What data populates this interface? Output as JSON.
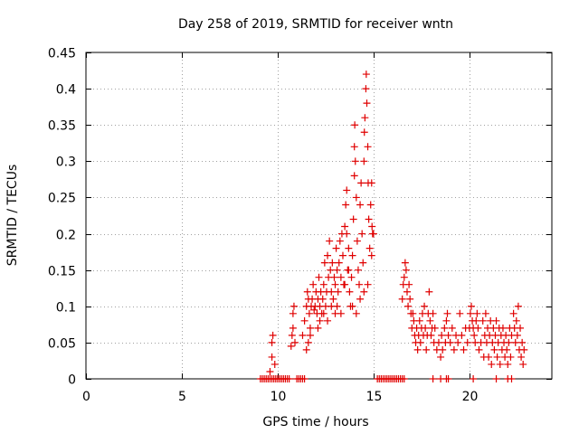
{
  "chart_data": {
    "type": "scatter",
    "title": "Day 258 of 2019, SRMTID for receiver wntn",
    "xlabel": "GPS time / hours",
    "ylabel": "SRMTID / TECUs",
    "xlim": [
      0,
      24.3
    ],
    "ylim": [
      0,
      0.45
    ],
    "xticks": [
      0,
      5,
      10,
      15,
      20
    ],
    "yticks": [
      0,
      0.05,
      0.1,
      0.15,
      0.2,
      0.25,
      0.3,
      0.35,
      0.4,
      0.45
    ],
    "xtick_labels": [
      "0",
      "5",
      "10",
      "15",
      "20"
    ],
    "ytick_labels": [
      "0",
      "0.05",
      "0.1",
      "0.15",
      "0.2",
      "0.25",
      "0.3",
      "0.35",
      "0.4",
      "0.45"
    ],
    "grid": true,
    "marker": "+",
    "color": "#e00000",
    "series": [
      {
        "name": "SRMTID",
        "points": [
          [
            9.1,
            0.0
          ],
          [
            9.2,
            0.0
          ],
          [
            9.3,
            0.0
          ],
          [
            9.4,
            0.0
          ],
          [
            9.5,
            0.0
          ],
          [
            9.6,
            0.0
          ],
          [
            9.7,
            0.0
          ],
          [
            9.8,
            0.0
          ],
          [
            9.9,
            0.0
          ],
          [
            10.0,
            0.0
          ],
          [
            10.1,
            0.0
          ],
          [
            10.2,
            0.0
          ],
          [
            10.3,
            0.0
          ],
          [
            10.4,
            0.0
          ],
          [
            10.5,
            0.0
          ],
          [
            10.6,
            0.0
          ],
          [
            11.0,
            0.0
          ],
          [
            11.1,
            0.0
          ],
          [
            11.2,
            0.0
          ],
          [
            11.3,
            0.0
          ],
          [
            11.4,
            0.0
          ],
          [
            15.2,
            0.0
          ],
          [
            15.3,
            0.0
          ],
          [
            15.4,
            0.0
          ],
          [
            15.5,
            0.0
          ],
          [
            15.6,
            0.0
          ],
          [
            15.7,
            0.0
          ],
          [
            15.8,
            0.0
          ],
          [
            15.9,
            0.0
          ],
          [
            16.0,
            0.0
          ],
          [
            16.1,
            0.0
          ],
          [
            16.2,
            0.0
          ],
          [
            16.3,
            0.0
          ],
          [
            16.4,
            0.0
          ],
          [
            16.5,
            0.0
          ],
          [
            16.6,
            0.0
          ],
          [
            18.1,
            0.0
          ],
          [
            18.5,
            0.0
          ],
          [
            18.8,
            0.0
          ],
          [
            18.9,
            0.0
          ],
          [
            20.2,
            0.0
          ],
          [
            21.4,
            0.0
          ],
          [
            22.0,
            0.0
          ],
          [
            22.2,
            0.0
          ],
          [
            9.6,
            0.01
          ],
          [
            9.7,
            0.03
          ],
          [
            9.7,
            0.05
          ],
          [
            9.75,
            0.06
          ],
          [
            9.85,
            0.02
          ],
          [
            10.7,
            0.045
          ],
          [
            10.75,
            0.06
          ],
          [
            10.8,
            0.09
          ],
          [
            10.85,
            0.1
          ],
          [
            10.8,
            0.07
          ],
          [
            10.9,
            0.05
          ],
          [
            11.3,
            0.06
          ],
          [
            11.4,
            0.08
          ],
          [
            11.5,
            0.1
          ],
          [
            11.55,
            0.12
          ],
          [
            11.6,
            0.11
          ],
          [
            11.65,
            0.09
          ],
          [
            11.7,
            0.07
          ],
          [
            11.75,
            0.1
          ],
          [
            11.8,
            0.11
          ],
          [
            11.85,
            0.13
          ],
          [
            11.9,
            0.095
          ],
          [
            11.95,
            0.1
          ],
          [
            12.0,
            0.12
          ],
          [
            12.05,
            0.09
          ],
          [
            12.1,
            0.11
          ],
          [
            12.15,
            0.14
          ],
          [
            12.2,
            0.1
          ],
          [
            12.25,
            0.12
          ],
          [
            12.3,
            0.09
          ],
          [
            12.35,
            0.11
          ],
          [
            12.4,
            0.13
          ],
          [
            12.45,
            0.16
          ],
          [
            12.5,
            0.1
          ],
          [
            12.55,
            0.12
          ],
          [
            12.6,
            0.17
          ],
          [
            12.65,
            0.14
          ],
          [
            12.7,
            0.19
          ],
          [
            12.75,
            0.15
          ],
          [
            12.8,
            0.12
          ],
          [
            12.85,
            0.16
          ],
          [
            12.9,
            0.11
          ],
          [
            12.95,
            0.14
          ],
          [
            13.0,
            0.13
          ],
          [
            13.05,
            0.18
          ],
          [
            13.1,
            0.15
          ],
          [
            13.15,
            0.12
          ],
          [
            13.2,
            0.16
          ],
          [
            13.25,
            0.19
          ],
          [
            13.3,
            0.14
          ],
          [
            13.35,
            0.2
          ],
          [
            13.4,
            0.17
          ],
          [
            13.45,
            0.13
          ],
          [
            13.5,
            0.21
          ],
          [
            13.55,
            0.24
          ],
          [
            13.6,
            0.26
          ],
          [
            13.6,
            0.2
          ],
          [
            13.65,
            0.15
          ],
          [
            13.7,
            0.18
          ],
          [
            13.75,
            0.12
          ],
          [
            13.8,
            0.1
          ],
          [
            13.85,
            0.14
          ],
          [
            13.9,
            0.17
          ],
          [
            13.95,
            0.22
          ],
          [
            14.0,
            0.28
          ],
          [
            14.0,
            0.32
          ],
          [
            14.02,
            0.35
          ],
          [
            14.05,
            0.3
          ],
          [
            14.1,
            0.25
          ],
          [
            14.15,
            0.19
          ],
          [
            14.2,
            0.15
          ],
          [
            14.25,
            0.13
          ],
          [
            14.3,
            0.24
          ],
          [
            14.35,
            0.27
          ],
          [
            14.4,
            0.2
          ],
          [
            14.45,
            0.16
          ],
          [
            14.5,
            0.3
          ],
          [
            14.52,
            0.34
          ],
          [
            14.55,
            0.36
          ],
          [
            14.6,
            0.4
          ],
          [
            14.62,
            0.42
          ],
          [
            14.65,
            0.38
          ],
          [
            14.7,
            0.32
          ],
          [
            14.72,
            0.27
          ],
          [
            14.75,
            0.22
          ],
          [
            14.8,
            0.18
          ],
          [
            14.85,
            0.24
          ],
          [
            14.9,
            0.27
          ],
          [
            14.92,
            0.21
          ],
          [
            14.95,
            0.2
          ],
          [
            15.0,
            0.2
          ],
          [
            13.0,
            0.09
          ],
          [
            13.1,
            0.1
          ],
          [
            13.3,
            0.09
          ],
          [
            13.5,
            0.13
          ],
          [
            13.7,
            0.15
          ],
          [
            13.9,
            0.1
          ],
          [
            14.1,
            0.09
          ],
          [
            14.3,
            0.11
          ],
          [
            14.5,
            0.12
          ],
          [
            14.7,
            0.13
          ],
          [
            14.9,
            0.17
          ],
          [
            12.2,
            0.08
          ],
          [
            12.4,
            0.09
          ],
          [
            12.6,
            0.08
          ],
          [
            12.8,
            0.1
          ],
          [
            12.1,
            0.07
          ],
          [
            11.6,
            0.05
          ],
          [
            11.7,
            0.06
          ],
          [
            11.5,
            0.04
          ],
          [
            16.5,
            0.11
          ],
          [
            16.55,
            0.13
          ],
          [
            16.6,
            0.14
          ],
          [
            16.65,
            0.16
          ],
          [
            16.7,
            0.15
          ],
          [
            16.75,
            0.12
          ],
          [
            16.8,
            0.1
          ],
          [
            16.85,
            0.13
          ],
          [
            16.9,
            0.11
          ],
          [
            16.95,
            0.09
          ],
          [
            17.0,
            0.07
          ],
          [
            17.05,
            0.09
          ],
          [
            17.1,
            0.08
          ],
          [
            17.15,
            0.06
          ],
          [
            17.2,
            0.05
          ],
          [
            17.25,
            0.07
          ],
          [
            17.3,
            0.04
          ],
          [
            17.35,
            0.06
          ],
          [
            17.4,
            0.08
          ],
          [
            17.45,
            0.05
          ],
          [
            17.5,
            0.07
          ],
          [
            17.55,
            0.09
          ],
          [
            17.6,
            0.06
          ],
          [
            17.65,
            0.1
          ],
          [
            17.7,
            0.07
          ],
          [
            17.75,
            0.04
          ],
          [
            17.8,
            0.06
          ],
          [
            17.85,
            0.09
          ],
          [
            17.9,
            0.12
          ],
          [
            17.95,
            0.08
          ],
          [
            18.0,
            0.06
          ],
          [
            18.05,
            0.07
          ],
          [
            18.1,
            0.09
          ],
          [
            18.15,
            0.05
          ],
          [
            18.2,
            0.07
          ],
          [
            18.3,
            0.04
          ],
          [
            18.4,
            0.05
          ],
          [
            18.5,
            0.03
          ],
          [
            18.55,
            0.06
          ],
          [
            18.6,
            0.04
          ],
          [
            18.7,
            0.07
          ],
          [
            18.75,
            0.05
          ],
          [
            18.8,
            0.08
          ],
          [
            18.85,
            0.09
          ],
          [
            18.9,
            0.06
          ],
          [
            19.0,
            0.05
          ],
          [
            19.1,
            0.07
          ],
          [
            19.2,
            0.04
          ],
          [
            19.3,
            0.06
          ],
          [
            19.4,
            0.05
          ],
          [
            19.5,
            0.09
          ],
          [
            19.6,
            0.06
          ],
          [
            19.7,
            0.04
          ],
          [
            19.8,
            0.07
          ],
          [
            19.9,
            0.05
          ],
          [
            20.0,
            0.07
          ],
          [
            20.05,
            0.09
          ],
          [
            20.1,
            0.1
          ],
          [
            20.15,
            0.08
          ],
          [
            20.2,
            0.07
          ],
          [
            20.25,
            0.06
          ],
          [
            20.3,
            0.05
          ],
          [
            20.35,
            0.08
          ],
          [
            20.4,
            0.09
          ],
          [
            20.45,
            0.07
          ],
          [
            20.5,
            0.04
          ],
          [
            20.6,
            0.05
          ],
          [
            20.7,
            0.08
          ],
          [
            20.75,
            0.03
          ],
          [
            20.8,
            0.06
          ],
          [
            20.85,
            0.09
          ],
          [
            20.9,
            0.05
          ],
          [
            20.95,
            0.07
          ],
          [
            21.0,
            0.03
          ],
          [
            21.05,
            0.06
          ],
          [
            21.1,
            0.08
          ],
          [
            21.15,
            0.02
          ],
          [
            21.2,
            0.05
          ],
          [
            21.25,
            0.07
          ],
          [
            21.3,
            0.04
          ],
          [
            21.35,
            0.06
          ],
          [
            21.4,
            0.08
          ],
          [
            21.45,
            0.03
          ],
          [
            21.5,
            0.05
          ],
          [
            21.55,
            0.07
          ],
          [
            21.6,
            0.02
          ],
          [
            21.65,
            0.06
          ],
          [
            21.7,
            0.04
          ],
          [
            21.75,
            0.07
          ],
          [
            21.8,
            0.05
          ],
          [
            21.85,
            0.03
          ],
          [
            21.9,
            0.06
          ],
          [
            21.95,
            0.04
          ],
          [
            22.0,
            0.02
          ],
          [
            22.05,
            0.05
          ],
          [
            22.1,
            0.07
          ],
          [
            22.15,
            0.03
          ],
          [
            22.2,
            0.06
          ],
          [
            22.3,
            0.09
          ],
          [
            22.35,
            0.07
          ],
          [
            22.4,
            0.05
          ],
          [
            22.45,
            0.08
          ],
          [
            22.5,
            0.06
          ],
          [
            22.55,
            0.1
          ],
          [
            22.6,
            0.04
          ],
          [
            22.65,
            0.07
          ],
          [
            22.7,
            0.03
          ],
          [
            22.75,
            0.05
          ],
          [
            22.8,
            0.02
          ],
          [
            22.85,
            0.04
          ]
        ]
      }
    ]
  }
}
